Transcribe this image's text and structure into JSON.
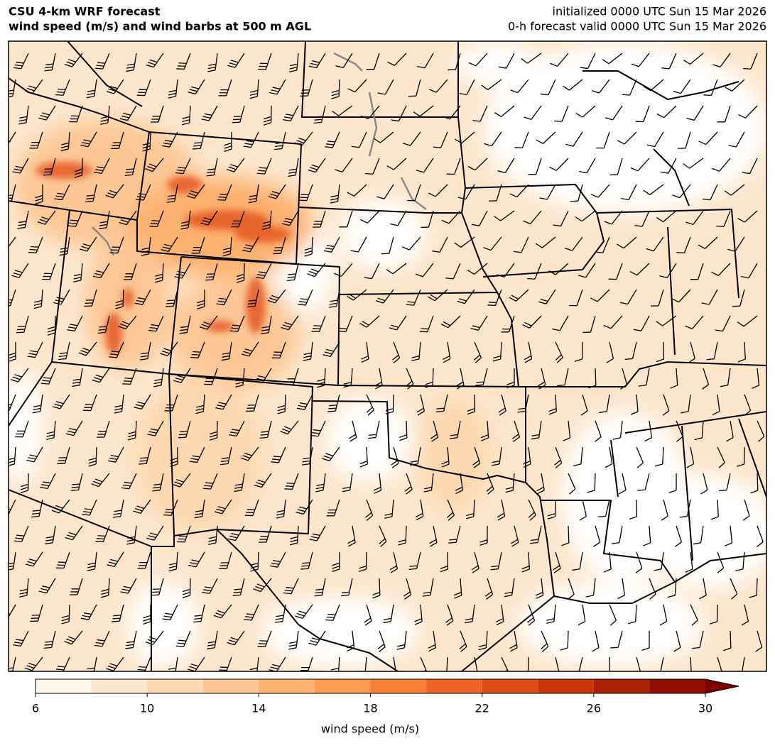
{
  "header": {
    "title": "CSU 4-km WRF forecast",
    "subtitle": "wind speed (m/s) and wind barbs at 500 m AGL",
    "initialized": "initialized 0000 UTC Sun 15 Mar 2026",
    "valid": "0-h forecast valid 0000 UTC Sun 15 Mar 2026"
  },
  "colorbar": {
    "label": "wind speed (m/s)",
    "lim": [
      6,
      30
    ],
    "ticks": [
      6,
      10,
      14,
      18,
      22,
      26,
      30
    ],
    "levels": [
      6,
      8,
      10,
      12,
      14,
      16,
      18,
      20,
      22,
      24,
      26,
      28,
      30
    ],
    "colors": [
      "#fff5eb",
      "#fee6ce",
      "#fdd8b0",
      "#fdc794",
      "#fdb170",
      "#fd9a50",
      "#f87f36",
      "#ef6324",
      "#e04a12",
      "#c93408",
      "#ab2004",
      "#900d02"
    ],
    "extend_color": "#7f0000"
  }
}
